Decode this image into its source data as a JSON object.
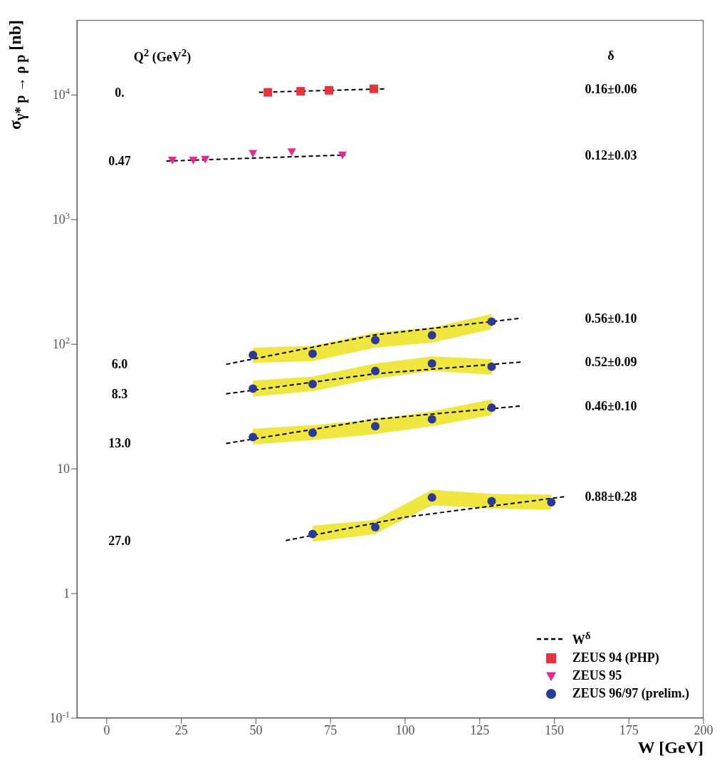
{
  "chart_data": {
    "type": "scatter",
    "xlabel": "W [GeV]",
    "ylabel": "σ$_{γ* p → ρ p}$ [nb]",
    "xlim": [
      -10,
      200
    ],
    "xticks": [
      0,
      25,
      50,
      75,
      100,
      125,
      150,
      175,
      200
    ],
    "ylim": [
      0.1,
      40000
    ],
    "yticks": [
      {
        "value": 0.1,
        "label": "10$^{-1}$"
      },
      {
        "value": 1,
        "label": "1"
      },
      {
        "value": 10,
        "label": "10"
      },
      {
        "value": 100,
        "label": "10$^{2}$"
      },
      {
        "value": 1000,
        "label": "10$^{3}$"
      },
      {
        "value": 10000,
        "label": "10$^{4}$"
      }
    ],
    "log": "y",
    "legend": "bottom right",
    "series": [
      {
        "name": "W$^{δ}$",
        "type": "line",
        "color": "#000000",
        "line_style": "dashed",
        "x": [
          51,
          93,
          null,
          20,
          80,
          null,
          40,
          90,
          139,
          null,
          40,
          90,
          139,
          null,
          40,
          90,
          139,
          null,
          60,
          100,
          154
        ],
        "values": [
          10500,
          11200,
          null,
          2950,
          3300,
          null,
          69,
          119,
          162,
          null,
          40,
          58,
          72,
          null,
          16,
          25,
          32,
          null,
          2.66,
          4.1,
          6.0
        ]
      },
      {
        "name": "ZEUS 94 (PHP)",
        "color": "#e8323c",
        "marker": "square",
        "x": [
          54,
          65,
          74.5,
          89.5
        ],
        "values": [
          10500,
          10700,
          10900,
          11200
        ]
      },
      {
        "name": "ZEUS 95",
        "color": "#e8288c",
        "marker": "triangle",
        "x": [
          22,
          29,
          33,
          49,
          62,
          79
        ],
        "values": [
          3000,
          3000,
          3050,
          3400,
          3500,
          3300
        ]
      },
      {
        "name": "ZEUS 96/97 (prelim.)",
        "color": "#2a3a9a",
        "marker": "circle",
        "x": [
          49,
          69,
          90,
          109,
          129,
          49,
          69,
          90,
          109,
          129,
          49,
          69,
          90,
          109,
          129,
          69,
          90,
          109,
          129,
          149
        ],
        "values": [
          82,
          84,
          108,
          118,
          152,
          44,
          48,
          61,
          70,
          66,
          18,
          19.5,
          22,
          25,
          31,
          3.0,
          3.4,
          5.9,
          5.5,
          5.4
        ],
        "lower": [
          71,
          73,
          94,
          103,
          132,
          38,
          42,
          53,
          61,
          57,
          15.7,
          17,
          19,
          22,
          27,
          2.6,
          3.0,
          5.1,
          4.8,
          4.7
        ],
        "upper": [
          94,
          97,
          124,
          136,
          175,
          51,
          55,
          70,
          80,
          76,
          21,
          22.4,
          25,
          29,
          36,
          3.5,
          3.9,
          6.8,
          6.3,
          6.2
        ]
      }
    ],
    "annotations": [
      "Q$^{2}$ (GeV$^{2}$)",
      "0.",
      "0.47",
      "6.0",
      "8.3",
      "13.0",
      "27.0",
      "δ",
      "0.16±0.06",
      "0.12±0.03",
      "0.56±0.10",
      "0.52±0.09",
      "0.46±0.10",
      "0.88±0.28"
    ]
  }
}
